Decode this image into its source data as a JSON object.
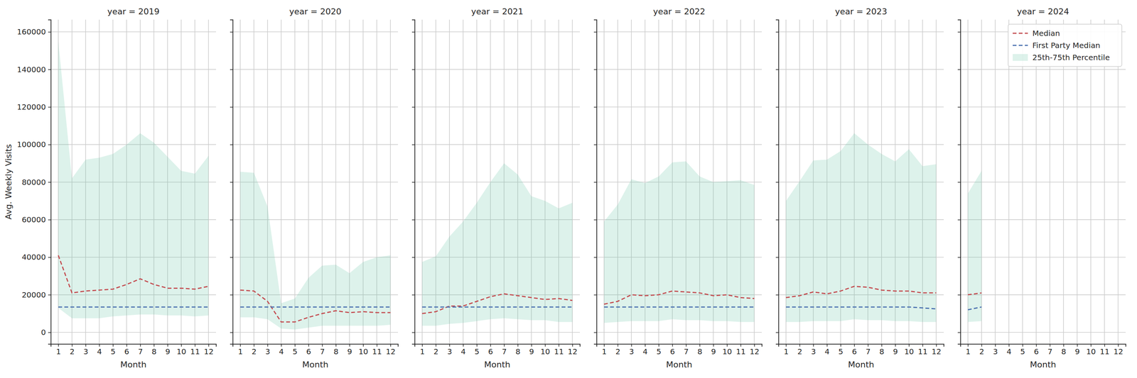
{
  "chart_data": [
    {
      "type": "line",
      "title": "year = 2019",
      "x_label": "Month",
      "y_label": "Avg. Weekly Visits",
      "x": [
        1,
        2,
        3,
        4,
        5,
        6,
        7,
        8,
        9,
        10,
        11,
        12
      ],
      "xlim": [
        0.45,
        12.55
      ],
      "xticks": [
        1,
        2,
        3,
        4,
        5,
        6,
        7,
        8,
        9,
        10,
        11,
        12
      ],
      "ylim": [
        -6200,
        166500
      ],
      "yticks": [
        0,
        20000,
        40000,
        60000,
        80000,
        100000,
        120000,
        140000,
        160000
      ],
      "grid": true,
      "series": [
        {
          "name": "Median",
          "color": "#c44e52",
          "line_style": "dashed",
          "values": [
            41000,
            21000,
            22000,
            22500,
            23000,
            25500,
            28500,
            25500,
            23500,
            23500,
            23000,
            24500
          ]
        },
        {
          "name": "First Party Median",
          "color": "#4c72b0",
          "line_style": "dashed",
          "values": [
            13500,
            13500,
            13500,
            13500,
            13500,
            13500,
            13500,
            13500,
            13500,
            13500,
            13500,
            13500
          ]
        },
        {
          "name": "25th-75th Percentile",
          "type": "area",
          "color": "#66c2a5",
          "low": [
            13000,
            7500,
            7500,
            7500,
            8500,
            9000,
            9500,
            9500,
            9000,
            9000,
            8500,
            9000
          ],
          "high": [
            155000,
            82000,
            92000,
            93000,
            95000,
            100000,
            106000,
            101000,
            93500,
            86000,
            84500,
            94000
          ]
        }
      ]
    },
    {
      "type": "line",
      "title": "year = 2020",
      "x_label": "Month",
      "tick_labels": "x",
      "x": [
        1,
        2,
        3,
        4,
        5,
        6,
        7,
        8,
        9,
        10,
        11,
        12
      ],
      "xlim": [
        0.45,
        12.55
      ],
      "xticks": [
        1,
        2,
        3,
        4,
        5,
        6,
        7,
        8,
        9,
        10,
        11,
        12
      ],
      "ylim": [
        -6200,
        166500
      ],
      "yticks": [
        0,
        20000,
        40000,
        60000,
        80000,
        100000,
        120000,
        140000,
        160000
      ],
      "grid": true,
      "series": [
        {
          "name": "Median",
          "color": "#c44e52",
          "line_style": "dashed",
          "values": [
            22500,
            22000,
            16500,
            5500,
            5500,
            8000,
            10000,
            11500,
            10500,
            11000,
            10500,
            10500
          ]
        },
        {
          "name": "First Party Median",
          "color": "#4c72b0",
          "line_style": "dashed",
          "values": [
            13500,
            13500,
            13500,
            13500,
            13500,
            13500,
            13500,
            13500,
            13500,
            13500,
            13500,
            13500
          ]
        },
        {
          "name": "25th-75th Percentile",
          "type": "area",
          "color": "#66c2a5",
          "low": [
            8000,
            8000,
            7000,
            2000,
            1500,
            2500,
            3500,
            3500,
            3500,
            3500,
            3500,
            4000
          ],
          "high": [
            85500,
            85000,
            67000,
            15500,
            18000,
            29000,
            35500,
            36000,
            31500,
            37500,
            40000,
            41000
          ]
        }
      ]
    },
    {
      "type": "line",
      "title": "year = 2021",
      "x_label": "Month",
      "tick_labels": "x",
      "x": [
        1,
        2,
        3,
        4,
        5,
        6,
        7,
        8,
        9,
        10,
        11,
        12
      ],
      "xlim": [
        0.45,
        12.55
      ],
      "xticks": [
        1,
        2,
        3,
        4,
        5,
        6,
        7,
        8,
        9,
        10,
        11,
        12
      ],
      "ylim": [
        -6200,
        166500
      ],
      "yticks": [
        0,
        20000,
        40000,
        60000,
        80000,
        100000,
        120000,
        140000,
        160000
      ],
      "grid": true,
      "series": [
        {
          "name": "Median",
          "color": "#c44e52",
          "line_style": "dashed",
          "values": [
            10000,
            11000,
            14000,
            14000,
            16500,
            19000,
            20500,
            19500,
            18500,
            17500,
            18000,
            17000
          ]
        },
        {
          "name": "First Party Median",
          "color": "#4c72b0",
          "line_style": "dashed",
          "values": [
            13500,
            13500,
            13500,
            13500,
            13500,
            13500,
            13500,
            13500,
            13500,
            13500,
            13500,
            13500
          ]
        },
        {
          "name": "25th-75th Percentile",
          "type": "area",
          "color": "#66c2a5",
          "low": [
            3500,
            3500,
            4500,
            5000,
            6000,
            7000,
            7500,
            7000,
            6500,
            6500,
            5500,
            5500
          ],
          "high": [
            37500,
            40500,
            51000,
            59000,
            69000,
            80000,
            90000,
            84000,
            72500,
            70000,
            66000,
            69000
          ]
        }
      ]
    },
    {
      "type": "line",
      "title": "year = 2022",
      "x_label": "Month",
      "tick_labels": "x",
      "x": [
        1,
        2,
        3,
        4,
        5,
        6,
        7,
        8,
        9,
        10,
        11,
        12
      ],
      "xlim": [
        0.45,
        12.55
      ],
      "xticks": [
        1,
        2,
        3,
        4,
        5,
        6,
        7,
        8,
        9,
        10,
        11,
        12
      ],
      "ylim": [
        -6200,
        166500
      ],
      "yticks": [
        0,
        20000,
        40000,
        60000,
        80000,
        100000,
        120000,
        140000,
        160000
      ],
      "grid": true,
      "series": [
        {
          "name": "Median",
          "color": "#c44e52",
          "line_style": "dashed",
          "values": [
            15000,
            16500,
            20000,
            19500,
            20000,
            22000,
            21500,
            21000,
            19500,
            20000,
            18500,
            18000
          ]
        },
        {
          "name": "First Party Median",
          "color": "#4c72b0",
          "line_style": "dashed",
          "values": [
            13500,
            13500,
            13500,
            13500,
            13500,
            13500,
            13500,
            13500,
            13500,
            13500,
            13500,
            13500
          ]
        },
        {
          "name": "25th-75th Percentile",
          "type": "area",
          "color": "#66c2a5",
          "low": [
            5000,
            5500,
            6000,
            6000,
            6000,
            7000,
            6500,
            6500,
            6000,
            6000,
            5500,
            5500
          ],
          "high": [
            59000,
            68000,
            81500,
            79500,
            83000,
            90500,
            91000,
            83000,
            80000,
            80500,
            81000,
            78500
          ]
        }
      ]
    },
    {
      "type": "line",
      "title": "year = 2023",
      "x_label": "Month",
      "tick_labels": "x",
      "x": [
        1,
        2,
        3,
        4,
        5,
        6,
        7,
        8,
        9,
        10,
        11,
        12
      ],
      "xlim": [
        0.45,
        12.55
      ],
      "xticks": [
        1,
        2,
        3,
        4,
        5,
        6,
        7,
        8,
        9,
        10,
        11,
        12
      ],
      "ylim": [
        -6200,
        166500
      ],
      "yticks": [
        0,
        20000,
        40000,
        60000,
        80000,
        100000,
        120000,
        140000,
        160000
      ],
      "grid": true,
      "series": [
        {
          "name": "Median",
          "color": "#c44e52",
          "line_style": "dashed",
          "values": [
            18500,
            19500,
            21500,
            20500,
            22000,
            24500,
            24000,
            22500,
            22000,
            22000,
            21000,
            21000
          ]
        },
        {
          "name": "First Party Median",
          "color": "#4c72b0",
          "line_style": "dashed",
          "values": [
            13500,
            13500,
            13500,
            13500,
            13500,
            13500,
            13500,
            13500,
            13500,
            13500,
            13000,
            12500
          ]
        },
        {
          "name": "25th-75th Percentile",
          "type": "area",
          "color": "#66c2a5",
          "low": [
            5500,
            5500,
            6000,
            6000,
            6000,
            7000,
            6500,
            6500,
            6000,
            6000,
            5500,
            5500
          ],
          "high": [
            70000,
            80500,
            91500,
            92000,
            96500,
            106000,
            100000,
            95000,
            91000,
            97500,
            88500,
            89500
          ]
        }
      ]
    },
    {
      "type": "line",
      "title": "year = 2024",
      "x_label": "Month",
      "tick_labels": "x",
      "legend": "upper right",
      "x": [
        1,
        2
      ],
      "xlim": [
        0.45,
        12.55
      ],
      "xticks": [
        1,
        2,
        3,
        4,
        5,
        6,
        7,
        8,
        9,
        10,
        11,
        12
      ],
      "ylim": [
        -6200,
        166500
      ],
      "yticks": [
        0,
        20000,
        40000,
        60000,
        80000,
        100000,
        120000,
        140000,
        160000
      ],
      "grid": true,
      "series": [
        {
          "name": "Median",
          "color": "#c44e52",
          "line_style": "dashed",
          "values": [
            20000,
            21000
          ]
        },
        {
          "name": "First Party Median",
          "color": "#4c72b0",
          "line_style": "dashed",
          "values": [
            12000,
            13500
          ]
        },
        {
          "name": "25th-75th Percentile",
          "type": "area",
          "color": "#66c2a5",
          "low": [
            5500,
            6000
          ],
          "high": [
            74000,
            86000
          ]
        }
      ]
    }
  ]
}
